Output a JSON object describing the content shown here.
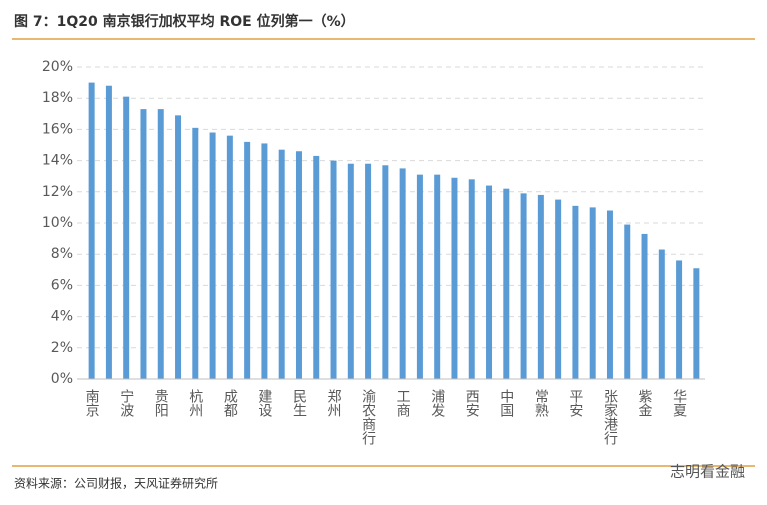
{
  "chart_data": {
    "type": "bar",
    "title": "图 7：1Q20 南京银行加权平均 ROE 位列第一（%）",
    "source": "资料来源：公司财报，天风证券研究所",
    "watermark": "志明看金融",
    "categories": [
      "南京",
      null,
      "宁波",
      null,
      "贵阳",
      null,
      "杭州",
      null,
      "成都",
      null,
      "建设",
      null,
      "民生",
      null,
      "郑州",
      null,
      "渝农商行",
      null,
      "工商",
      null,
      "浦发",
      null,
      "西安",
      null,
      "中国",
      null,
      "常熟",
      null,
      "平安",
      null,
      "张家港行",
      null,
      "紫金",
      null,
      "华夏",
      null
    ],
    "values": [
      19.0,
      18.8,
      18.1,
      17.3,
      17.3,
      16.9,
      16.1,
      15.8,
      15.6,
      15.2,
      15.1,
      14.7,
      14.6,
      14.3,
      14.0,
      13.8,
      13.8,
      13.7,
      13.5,
      13.1,
      13.1,
      12.9,
      12.8,
      12.4,
      12.2,
      11.9,
      11.8,
      11.5,
      11.1,
      11.0,
      10.8,
      9.9,
      9.3,
      8.3,
      7.6,
      7.1
    ],
    "color": "#5b9bd5",
    "ylim": [
      0,
      20
    ],
    "yticks": [
      {
        "value": 0,
        "label": "0%"
      },
      {
        "value": 2,
        "label": "2%"
      },
      {
        "value": 4,
        "label": "4%"
      },
      {
        "value": 6,
        "label": "6%"
      },
      {
        "value": 8,
        "label": "8%"
      },
      {
        "value": 10,
        "label": "10%"
      },
      {
        "value": 12,
        "label": "12%"
      },
      {
        "value": 14,
        "label": "14%"
      },
      {
        "value": 16,
        "label": "16%"
      },
      {
        "value": 18,
        "label": "18%"
      },
      {
        "value": 20,
        "label": "20%"
      }
    ],
    "grid": true
  }
}
